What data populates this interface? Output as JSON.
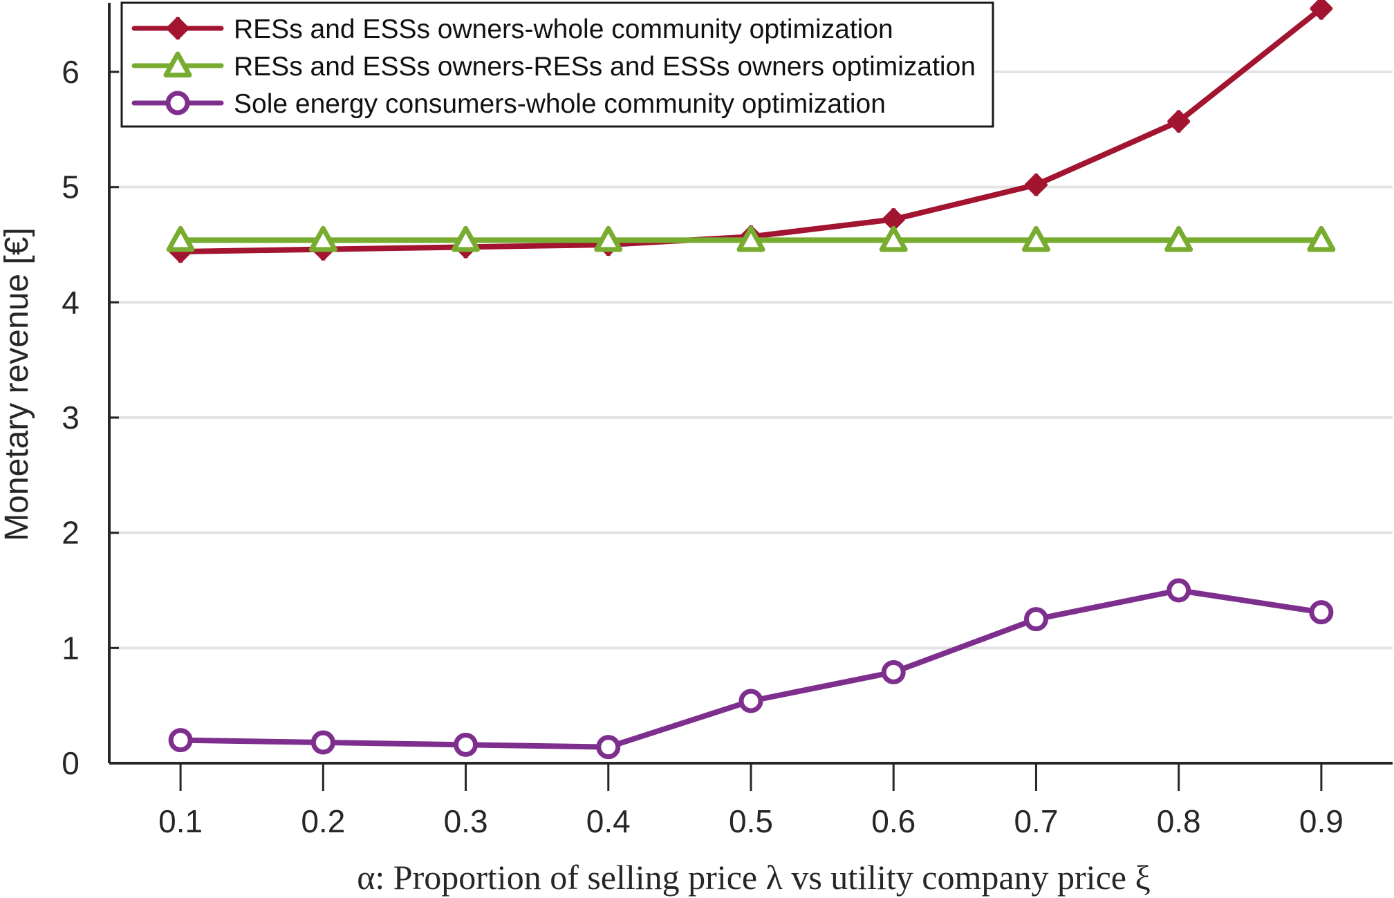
{
  "chart_data": {
    "type": "line",
    "title": "",
    "xlabel": "α: Proportion of selling price λ vs utility company price ξ",
    "ylabel": "Monetary revenue [€]",
    "x": [
      0.1,
      0.2,
      0.3,
      0.4,
      0.5,
      0.6,
      0.7,
      0.8,
      0.9
    ],
    "x_tick_labels": [
      "0.1",
      "0.2",
      "0.3",
      "0.4",
      "0.5",
      "0.6",
      "0.7",
      "0.8",
      "0.9"
    ],
    "y_ticks": [
      0,
      1,
      2,
      3,
      4,
      5,
      6
    ],
    "y_tick_labels": [
      "0",
      "1",
      "2",
      "3",
      "4",
      "5",
      "6"
    ],
    "xlim": [
      0.05,
      0.95
    ],
    "ylim": [
      0,
      6.6
    ],
    "grid": "horizontal",
    "legend_position": "top-left",
    "series": [
      {
        "name": "RESs and ESSs owners-whole community optimization",
        "color": "#a2142f",
        "marker": "diamond",
        "values": [
          4.44,
          4.46,
          4.48,
          4.5,
          4.57,
          4.72,
          5.02,
          5.57,
          6.55
        ]
      },
      {
        "name": "RESs and ESSs owners-RESs and ESSs owners optimization",
        "color": "#77ac30",
        "marker": "triangle",
        "values": [
          4.54,
          4.54,
          4.54,
          4.54,
          4.54,
          4.54,
          4.54,
          4.54,
          4.54
        ]
      },
      {
        "name": "Sole energy consumers-whole community optimization",
        "color": "#7e2f8e",
        "marker": "circle",
        "values": [
          0.2,
          0.18,
          0.16,
          0.14,
          0.54,
          0.79,
          1.25,
          1.5,
          1.31
        ]
      }
    ]
  }
}
